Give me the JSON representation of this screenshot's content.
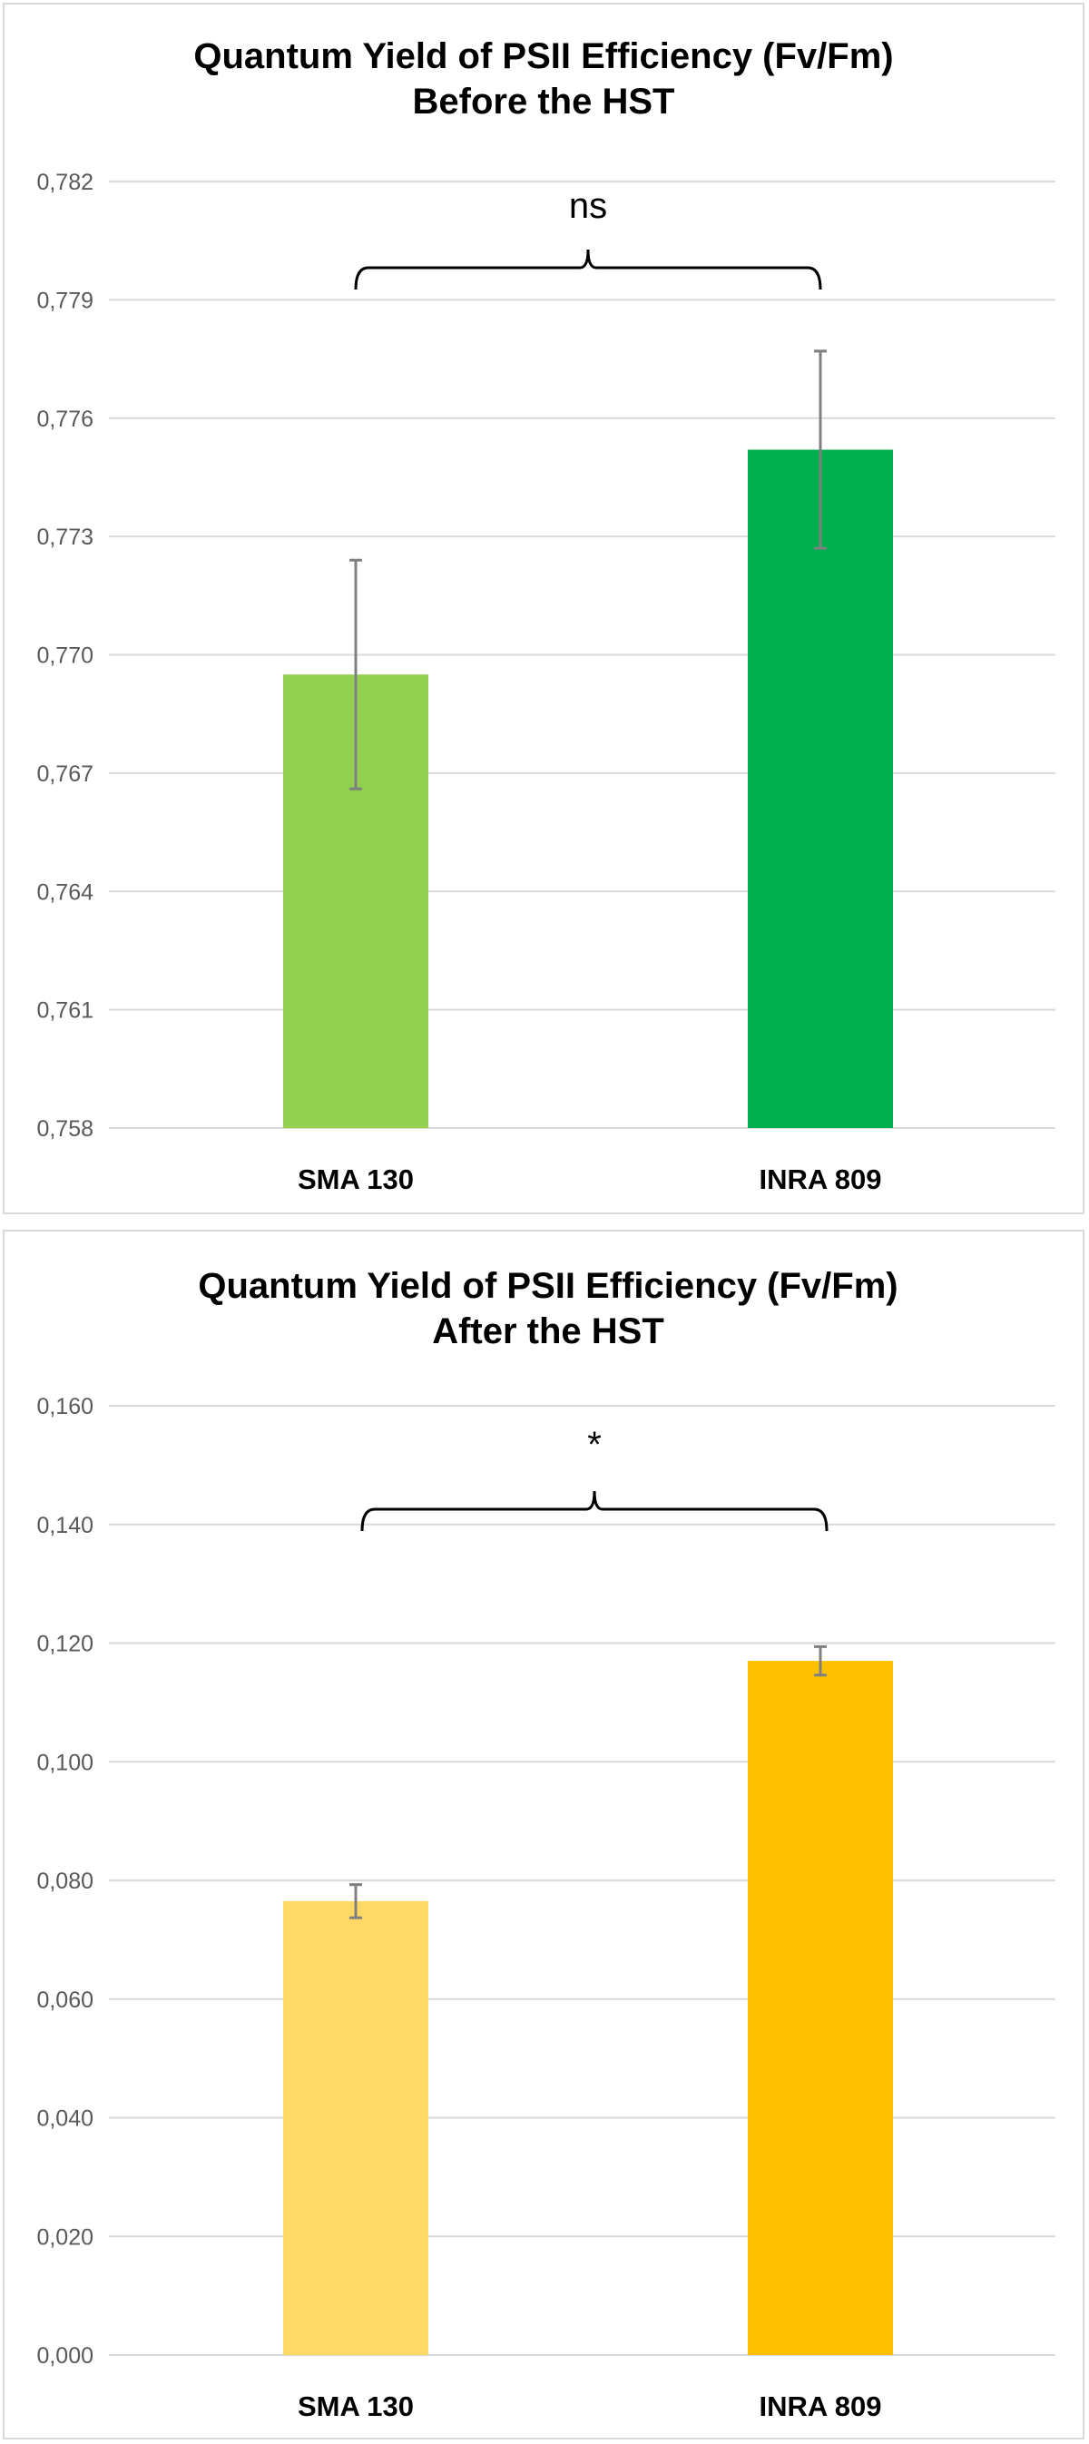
{
  "chart_data": [
    {
      "type": "bar",
      "title": "Quantum Yield of PSII Efficiency (Fv/Fm)",
      "subtitle": "Before the HST",
      "categories": [
        "SMA 130",
        "INRA 809"
      ],
      "values": [
        0.7695,
        0.7752
      ],
      "errors": [
        0.0029,
        0.0025
      ],
      "bar_colors": [
        "#92d050",
        "#00b050"
      ],
      "ylim": [
        0.758,
        0.782
      ],
      "yticks": [
        "0,782",
        "0,779",
        "0,776",
        "0,773",
        "0,770",
        "0,767",
        "0,764",
        "0,761",
        "0,758"
      ],
      "grid": true,
      "significance": "ns"
    },
    {
      "type": "bar",
      "title": "Quantum Yield of PSII Efficiency (Fv/Fm)",
      "subtitle": "After the HST",
      "categories": [
        "SMA 130",
        "INRA 809"
      ],
      "values": [
        0.0765,
        0.117
      ],
      "errors": [
        0.0028,
        0.0024
      ],
      "bar_colors": [
        "#ffd966",
        "#ffc000"
      ],
      "ylim": [
        0.0,
        0.16
      ],
      "yticks": [
        "0,160",
        "0,140",
        "0,120",
        "0,100",
        "0,080",
        "0,060",
        "0,040",
        "0,020",
        "0,000"
      ],
      "grid": true,
      "significance": "*"
    }
  ]
}
